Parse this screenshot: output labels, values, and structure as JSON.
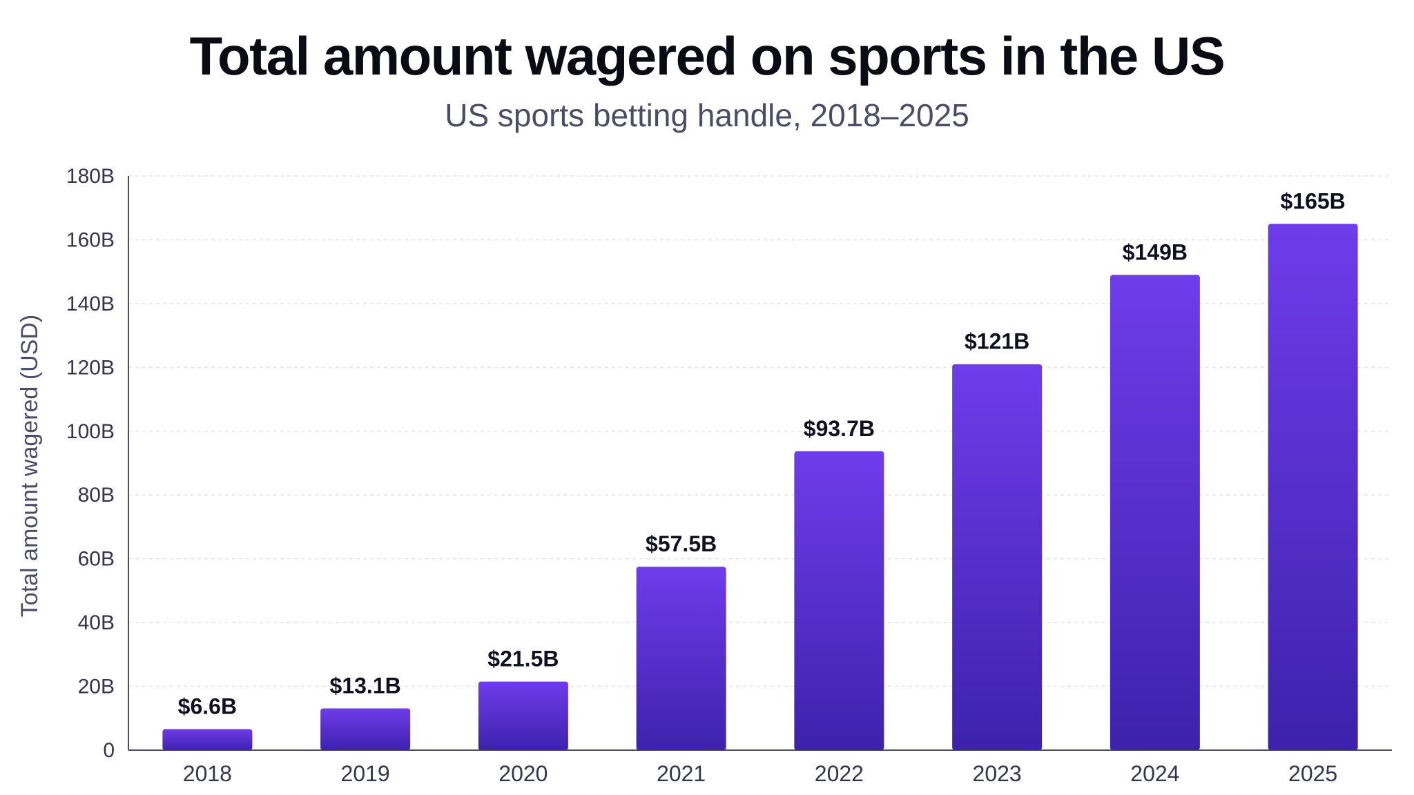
{
  "chart_data": {
    "type": "bar",
    "title": "Total amount wagered on sports in the US",
    "subtitle": "US sports betting handle, 2018–2025",
    "xlabel": "",
    "ylabel": "Total amount wagered (USD)",
    "ylim": [
      0,
      180
    ],
    "yticks": [
      0,
      20,
      40,
      60,
      80,
      100,
      120,
      140,
      160,
      180
    ],
    "ytick_labels": [
      "0",
      "20B",
      "40B",
      "60B",
      "80B",
      "100B",
      "120B",
      "140B",
      "160B",
      "180B"
    ],
    "categories": [
      "2018",
      "2019",
      "2020",
      "2021",
      "2022",
      "2023",
      "2024",
      "2025"
    ],
    "values": [
      6.6,
      13.1,
      21.5,
      57.5,
      93.7,
      121,
      149,
      165
    ],
    "data_labels": [
      "$6.6B",
      "$13.1B",
      "$21.5B",
      "$57.5B",
      "$93.7B",
      "$121B",
      "$149B",
      "$165B"
    ],
    "grid": true,
    "legend": "none",
    "colors": {
      "bar_top": "#6f3cea",
      "bar_bottom": "#3d22ac",
      "grid": "#e3e4ea",
      "axis": "#4a4d63"
    }
  }
}
